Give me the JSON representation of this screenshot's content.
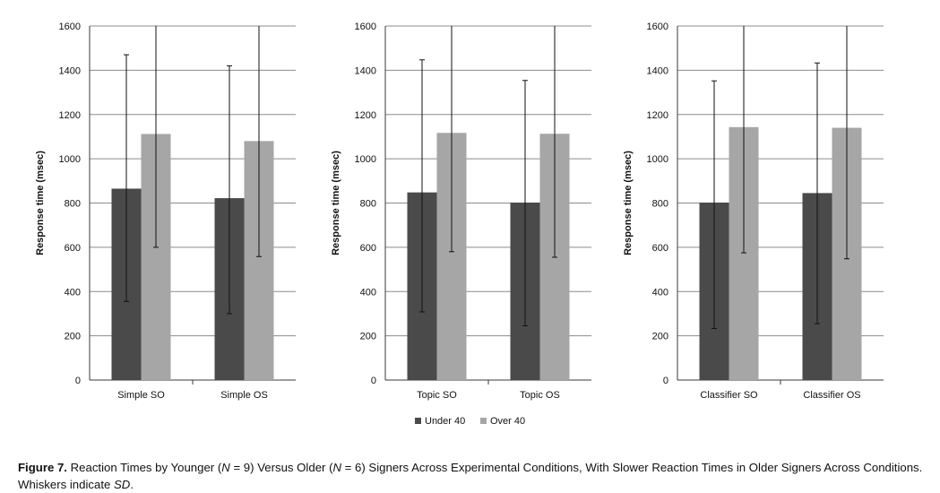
{
  "chart_data": [
    {
      "type": "bar",
      "categories": [
        "Simple SO",
        "Simple OS"
      ],
      "ylabel": "Response time (msec)",
      "ylim": [
        0,
        1600
      ],
      "yticks": [
        0,
        200,
        400,
        600,
        800,
        1000,
        1200,
        1400,
        1600
      ],
      "grid": true,
      "series": [
        {
          "name": "Under 40",
          "values": [
            865,
            822
          ],
          "err_low": [
            355,
            300
          ],
          "err_high": [
            1470,
            1420
          ]
        },
        {
          "name": "Over 40",
          "values": [
            1112,
            1080
          ],
          "err_low": [
            600,
            558
          ],
          "err_high": [
            1600,
            1600
          ]
        }
      ]
    },
    {
      "type": "bar",
      "categories": [
        "Topic SO",
        "Topic OS"
      ],
      "ylabel": "Response time (msec)",
      "ylim": [
        0,
        1600
      ],
      "yticks": [
        0,
        200,
        400,
        600,
        800,
        1000,
        1200,
        1400,
        1600
      ],
      "grid": true,
      "series": [
        {
          "name": "Under 40",
          "values": [
            848,
            802
          ],
          "err_low": [
            308,
            245
          ],
          "err_high": [
            1447,
            1354
          ]
        },
        {
          "name": "Over 40",
          "values": [
            1117,
            1113
          ],
          "err_low": [
            580,
            555
          ],
          "err_high": [
            1600,
            1600
          ]
        }
      ]
    },
    {
      "type": "bar",
      "categories": [
        "Classifier SO",
        "Classifier OS"
      ],
      "ylabel": "Response time (msec)",
      "ylim": [
        0,
        1600
      ],
      "yticks": [
        0,
        200,
        400,
        600,
        800,
        1000,
        1200,
        1400,
        1600
      ],
      "grid": true,
      "series": [
        {
          "name": "Under 40",
          "values": [
            802,
            845
          ],
          "err_low": [
            233,
            255
          ],
          "err_high": [
            1352,
            1433
          ]
        },
        {
          "name": "Over 40",
          "values": [
            1143,
            1140
          ],
          "err_low": [
            575,
            548
          ],
          "err_high": [
            1600,
            1600
          ]
        }
      ]
    }
  ],
  "legend": {
    "placement": "bottom",
    "items": [
      {
        "label": "Under 40",
        "color": "#4a4a4a"
      },
      {
        "label": "Over 40",
        "color": "#a6a6a6"
      }
    ]
  },
  "colors": {
    "under": "#4a4a4a",
    "over": "#a6a6a6",
    "grid": "#8c8c8c",
    "axis": "#3a3a3a"
  },
  "caption": {
    "label": "Figure 7.",
    "part1": " Reaction Times by Younger (",
    "n1_var": "N",
    "n1_rest": " = 9) Versus Older (",
    "n2_var": "N",
    "n2_rest": " = 6) Signers Across Experimental Conditions, With Slower Reaction Times in Older Signers Across Conditions. Whiskers indicate ",
    "sd": "SD",
    "end": "."
  }
}
